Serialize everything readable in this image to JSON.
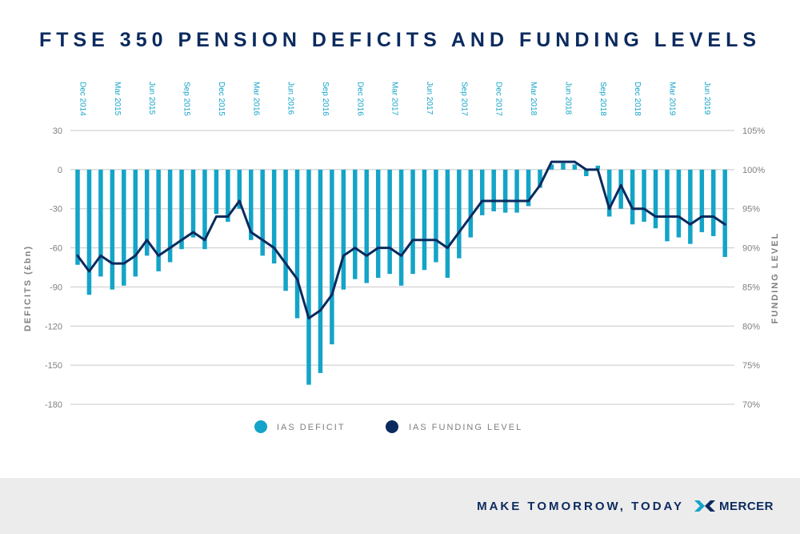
{
  "colors": {
    "deficit": "#14a4c8",
    "funding": "#0b2a5e",
    "grid": "#c8c8c8",
    "axis_text": "#7f7f7f",
    "date_text": "#14a4c8",
    "footer_bg": "#ececec"
  },
  "footer": {
    "tagline": "MAKE TOMORROW, TODAY",
    "logo_text": "MERCER",
    "logo_icon": "mercer-chevron-icon"
  },
  "chart_data": {
    "type": "bar+line",
    "title": "FTSE 350 PENSION DEFICITS AND FUNDING LEVELS",
    "ylabel_left": "DEFICITS (£bn)",
    "ylabel_right": "FUNDING LEVEL",
    "ylim_left": [
      -180,
      30
    ],
    "yticks_left": [
      "30",
      "0",
      "-30",
      "-60",
      "-90",
      "-120",
      "-150",
      "-180"
    ],
    "ylim_right": [
      70,
      105
    ],
    "yticks_right": [
      "105%",
      "100%",
      "95%",
      "90%",
      "85%",
      "80%",
      "75%",
      "70%"
    ],
    "x_tick_labels": [
      "Dec 2014",
      "Mar 2015",
      "Jun 2015",
      "Sep 2015",
      "Dec 2015",
      "Mar 2016",
      "Jun 2016",
      "Sep 2016",
      "Dec 2016",
      "Mar 2017",
      "Jun 2017",
      "Sep 2017",
      "Dec 2017",
      "Mar 2018",
      "Jun 2018",
      "Sep 2018",
      "Dec 2018",
      "Mar 2019",
      "Jun 2019"
    ],
    "legend_position": "bottom-center",
    "grid": true,
    "series": [
      {
        "name": "IAS DEFICIT",
        "type": "bar",
        "values": [
          -73,
          -96,
          -82,
          -92,
          -89,
          -82,
          -66,
          -78,
          -71,
          -61,
          -52,
          -61,
          -34,
          -40,
          -30,
          -54,
          -66,
          -72,
          -93,
          -114,
          -165,
          -156,
          -134,
          -92,
          -84,
          -87,
          -83,
          -80,
          -89,
          -80,
          -77,
          -71,
          -83,
          -68,
          -52,
          -35,
          -32,
          -33,
          -33,
          -28,
          -14,
          4,
          5,
          4,
          -5,
          3,
          -36,
          -30,
          -42,
          -40,
          -45,
          -55,
          -52,
          -57,
          -48,
          -51,
          -67
        ]
      },
      {
        "name": "IAS FUNDING LEVEL",
        "type": "line",
        "values": [
          89,
          87,
          89,
          88,
          88,
          89,
          91,
          89,
          90,
          91,
          92,
          91,
          94,
          94,
          96,
          92,
          91,
          90,
          88,
          86,
          81,
          82,
          84,
          89,
          90,
          89,
          90,
          90,
          89,
          91,
          91,
          91,
          90,
          92,
          94,
          96,
          96,
          96,
          96,
          96,
          98,
          101,
          101,
          101,
          100,
          100,
          95,
          98,
          95,
          95,
          94,
          94,
          94,
          93,
          94,
          94,
          93
        ]
      }
    ]
  }
}
